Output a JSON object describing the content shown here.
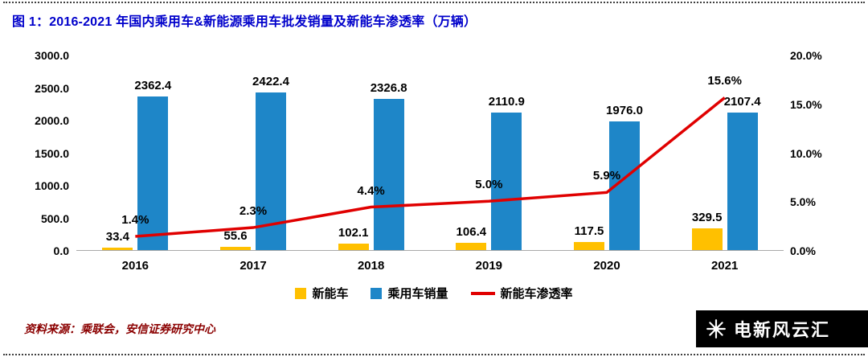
{
  "figure": {
    "title": "图 1：2016-2021 年国内乘用车&新能源乘用车批发销量及新能车渗透率（万辆）",
    "source": "资料来源：乘联会，安信证券研究中心"
  },
  "watermark": {
    "icon": "snowflake-logo-icon",
    "text": "电新风云汇"
  },
  "colors": {
    "title_blue": "#0000CB",
    "source_red": "#8B0000",
    "nev_bar": "#FFC000",
    "passenger_bar": "#1E86C8",
    "penetration_line": "#E00000"
  },
  "chart_data": {
    "type": "bar",
    "subtype": "bar+line dual axis",
    "categories": [
      "2016",
      "2017",
      "2018",
      "2019",
      "2020",
      "2021"
    ],
    "series": [
      {
        "name": "新能车",
        "type": "bar",
        "axis": "left",
        "color": "#FFC000",
        "values": [
          33.4,
          55.6,
          102.1,
          106.4,
          117.5,
          329.5
        ]
      },
      {
        "name": "乘用车销量",
        "type": "bar",
        "axis": "left",
        "color": "#1E86C8",
        "values": [
          2362.4,
          2422.4,
          2326.8,
          2110.9,
          1976.0,
          2107.4
        ]
      },
      {
        "name": "新能车渗透率",
        "type": "line",
        "axis": "right",
        "color": "#E00000",
        "values": [
          1.4,
          2.3,
          4.4,
          5.0,
          5.9,
          15.6
        ]
      }
    ],
    "left_axis": {
      "min": 0,
      "max": 3000,
      "step": 500,
      "labels": [
        "0.0",
        "500.0",
        "1000.0",
        "1500.0",
        "2000.0",
        "2500.0",
        "3000.0"
      ]
    },
    "right_axis": {
      "min": 0,
      "max": 20,
      "step": 5,
      "labels": [
        "0.0%",
        "5.0%",
        "10.0%",
        "15.0%",
        "20.0%"
      ]
    },
    "legend": [
      "新能车",
      "乘用车销量",
      "新能车渗透率"
    ],
    "legend_position": "bottom-center",
    "grid": false,
    "title": "图 1：2016-2021 年国内乘用车&新能源乘用车批发销量及新能车渗透率（万辆）",
    "xlabel": "",
    "ylabel": ""
  }
}
